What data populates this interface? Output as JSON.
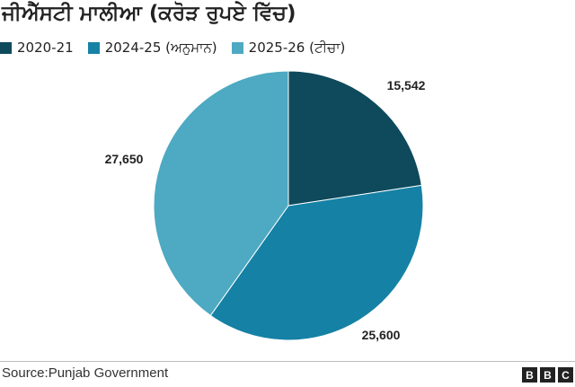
{
  "chart_data": {
    "type": "pie",
    "title": "ਜੀਐੱਸਟੀ ਮਾਲੀਆ (ਕਰੋੜ ਰੁਪਏ ਵਿੱਚ)",
    "categories": [
      "2020-21",
      "2024-25 (ਅਨੁਮਾਨ)",
      "2025-26 (ਟੀਚਾ)"
    ],
    "values": [
      15542,
      25600,
      27650
    ],
    "value_labels": [
      "15,542",
      "25,600",
      "27,650"
    ],
    "colors": [
      "#0e4a5c",
      "#1581a5",
      "#4ea9c2"
    ],
    "legend_position": "top-left"
  },
  "footer": {
    "source": "Source:Punjab Government",
    "logo": [
      "B",
      "B",
      "C"
    ]
  }
}
